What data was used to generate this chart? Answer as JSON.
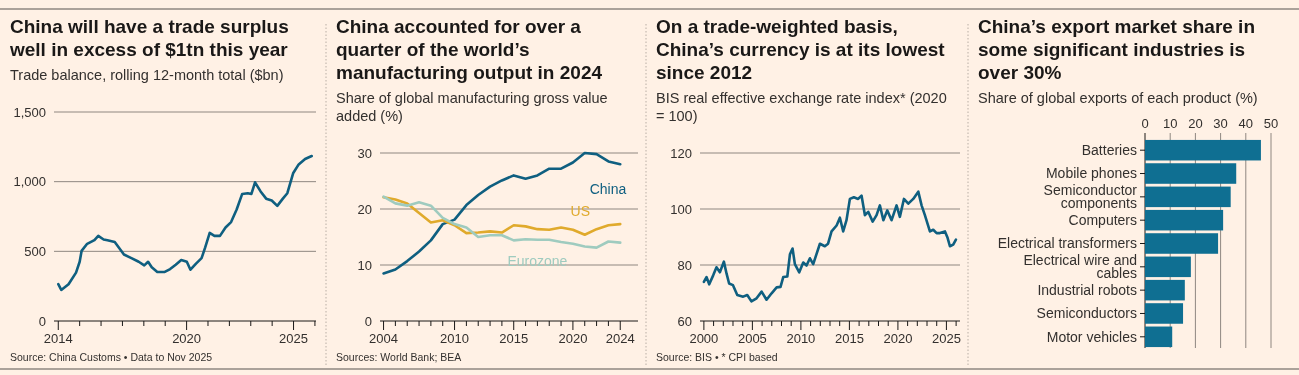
{
  "chart_data": [
    {
      "type": "line",
      "title": "China will have a trade surplus well in excess of $1tn this year",
      "subtitle": "Trade balance, rolling 12-month total ($bn)",
      "annotations": [
        "Source: China Customs • Data to Nov 2025"
      ],
      "grid": "y",
      "x": [
        2014.0,
        2014.14,
        2014.48,
        2014.83,
        2015.0,
        2015.09,
        2015.35,
        2015.69,
        2015.87,
        2016.12,
        2016.3,
        2016.64,
        2017.07,
        2017.42,
        2017.76,
        2018.02,
        2018.2,
        2018.37,
        2018.63,
        2018.98,
        2019.23,
        2019.49,
        2019.75,
        2020.01,
        2020.18,
        2020.44,
        2020.7,
        2020.87,
        2021.08,
        2021.3,
        2021.56,
        2021.82,
        2022.08,
        2022.34,
        2022.6,
        2022.86,
        2023.03,
        2023.2,
        2023.46,
        2023.72,
        2023.98,
        2024.24,
        2024.5,
        2024.71,
        2024.98,
        2025.24,
        2025.54,
        2025.85
      ],
      "series": [
        {
          "color": "#0f5f80",
          "values": [
            264,
            223,
            264,
            347,
            425,
            503,
            554,
            580,
            611,
            585,
            580,
            567,
            477,
            451,
            425,
            399,
            425,
            386,
            352,
            352,
            373,
            404,
            438,
            425,
            368,
            412,
            451,
            528,
            632,
            611,
            611,
            671,
            710,
            800,
            912,
            917,
            912,
            995,
            930,
            878,
            865,
            826,
            878,
            917,
            1060,
            1124,
            1163,
            1184
          ]
        }
      ],
      "xlim": [
        2013.8,
        2026.05
      ],
      "xticks": [
        2014,
        {
          "value": 2015,
          "label": null
        },
        {
          "value": 2016,
          "label": null
        },
        {
          "value": 2017,
          "label": null
        },
        {
          "value": 2018,
          "label": null
        },
        {
          "value": 2019,
          "label": null
        },
        2020,
        {
          "value": 2021,
          "label": null
        },
        {
          "value": 2022,
          "label": null
        },
        {
          "value": 2023,
          "label": null
        },
        {
          "value": 2024,
          "label": null
        },
        2025,
        {
          "value": 2026,
          "label": null
        }
      ],
      "ylim": [
        0,
        1500
      ],
      "yticks": [
        0,
        500,
        {
          "value": 1000,
          "label": "1,000"
        },
        {
          "value": 1500,
          "label": "1,500"
        }
      ]
    },
    {
      "type": "line",
      "title": "China accounted for over a quarter of the world’s manufacturing output in 2024",
      "subtitle": "Share of global manufacturing gross value added (%)",
      "annotations": [
        "Sources: World Bank; BEA"
      ],
      "grid": "y",
      "x": [
        2004,
        2005,
        2006,
        2007,
        2008,
        2009,
        2010,
        2011,
        2012,
        2013,
        2014,
        2015,
        2016,
        2017,
        2018,
        2019,
        2020,
        2021,
        2022,
        2023,
        2024
      ],
      "series": [
        {
          "name": "China",
          "color": "#0f5f80",
          "values": [
            8.5,
            9.2,
            10.7,
            12.4,
            14.4,
            17.3,
            18.1,
            20.7,
            22.5,
            24.0,
            25.1,
            26.0,
            25.4,
            26.0,
            27.2,
            27.2,
            28.3,
            30.0,
            29.8,
            28.5,
            28.0
          ]
        },
        {
          "name": "US",
          "color": "#e0aa2c",
          "values": [
            22.1,
            21.7,
            21.0,
            19.3,
            17.6,
            18.0,
            17.1,
            15.7,
            15.8,
            16.0,
            15.8,
            17.1,
            16.9,
            16.4,
            16.3,
            16.7,
            16.3,
            15.4,
            16.4,
            17.1,
            17.3
          ]
        },
        {
          "name": "Eurozone",
          "color": "#9fcbbf",
          "values": [
            22.2,
            21.0,
            20.6,
            21.2,
            20.6,
            18.4,
            17.3,
            16.7,
            15.0,
            15.3,
            15.3,
            14.4,
            14.6,
            14.5,
            14.5,
            14.1,
            13.8,
            13.3,
            13.1,
            14.2,
            14.0
          ]
        }
      ],
      "xlim": [
        2003.7,
        2025.5
      ],
      "xticks": [
        2004,
        {
          "value": 2005,
          "label": null
        },
        {
          "value": 2006,
          "label": null
        },
        {
          "value": 2007,
          "label": null
        },
        {
          "value": 2008,
          "label": null
        },
        {
          "value": 2009,
          "label": null
        },
        2010,
        {
          "value": 2011,
          "label": null
        },
        {
          "value": 2012,
          "label": null
        },
        {
          "value": 2013,
          "label": null
        },
        {
          "value": 2014,
          "label": null
        },
        2015,
        {
          "value": 2016,
          "label": null
        },
        {
          "value": 2017,
          "label": null
        },
        {
          "value": 2018,
          "label": null
        },
        {
          "value": 2019,
          "label": null
        },
        2020,
        {
          "value": 2021,
          "label": null
        },
        {
          "value": 2022,
          "label": null
        },
        {
          "value": 2023,
          "label": null
        },
        2024
      ],
      "ylim": [
        0,
        30
      ],
      "yticks": [
        0,
        10,
        20,
        30
      ]
    },
    {
      "type": "line",
      "title": "On a trade-weighted basis, China’s currency is at its lowest since 2012",
      "subtitle": "BIS real effective exchange rate index* (2020 = 100)",
      "annotations": [
        "Source: BIS • * CPI based"
      ],
      "grid": "y",
      "x": [
        2000.0,
        2000.27,
        2000.55,
        2000.96,
        2001.3,
        2001.65,
        2002.06,
        2002.34,
        2002.6,
        2003.0,
        2003.44,
        2004.05,
        2004.47,
        2004.9,
        2005.43,
        2005.95,
        2006.46,
        2006.98,
        2007.5,
        2007.9,
        2008.18,
        2008.6,
        2008.87,
        2009.14,
        2009.38,
        2009.83,
        2010.24,
        2010.58,
        2010.93,
        2011.27,
        2011.6,
        2011.96,
        2012.47,
        2012.8,
        2013.16,
        2013.68,
        2014.02,
        2014.36,
        2014.7,
        2015.05,
        2015.46,
        2015.9,
        2016.25,
        2016.6,
        2016.94,
        2017.4,
        2017.8,
        2018.14,
        2018.5,
        2018.9,
        2019.35,
        2019.86,
        2020.2,
        2020.62,
        2021.07,
        2021.58,
        2022.1,
        2022.44,
        2022.78,
        2023.3,
        2023.64,
        2023.99,
        2024.33,
        2024.85,
        2025.12,
        2025.36,
        2025.7,
        2025.98
      ],
      "series": [
        {
          "color": "#0f5f80",
          "values": [
            74.0,
            75.7,
            73.1,
            76.3,
            79.2,
            77.4,
            81.2,
            76.9,
            73.4,
            72.8,
            69.3,
            68.7,
            69.3,
            67.0,
            68.1,
            70.5,
            67.6,
            69.9,
            72.0,
            72.2,
            75.7,
            75.9,
            83.8,
            85.9,
            80.3,
            77.4,
            80.9,
            79.8,
            82.4,
            80.3,
            83.8,
            87.6,
            86.7,
            87.6,
            92.0,
            94.1,
            96.9,
            92.0,
            96.0,
            103.6,
            104.2,
            103.6,
            104.8,
            97.8,
            99.0,
            95.5,
            97.8,
            101.3,
            96.0,
            99.5,
            96.0,
            101.3,
            97.2,
            103.6,
            101.9,
            103.6,
            106.2,
            101.3,
            97.8,
            92.0,
            92.6,
            91.4,
            91.4,
            92.0,
            89.7,
            86.7,
            87.3,
            89.1
          ]
        }
      ],
      "xlim": [
        1999.6,
        2026.4
      ],
      "xticks": [
        2000,
        {
          "value": 2001,
          "label": null
        },
        {
          "value": 2002,
          "label": null
        },
        {
          "value": 2003,
          "label": null
        },
        {
          "value": 2004,
          "label": null
        },
        2005,
        {
          "value": 2006,
          "label": null
        },
        {
          "value": 2007,
          "label": null
        },
        {
          "value": 2008,
          "label": null
        },
        {
          "value": 2009,
          "label": null
        },
        2010,
        {
          "value": 2011,
          "label": null
        },
        {
          "value": 2012,
          "label": null
        },
        {
          "value": 2013,
          "label": null
        },
        {
          "value": 2014,
          "label": null
        },
        2015,
        {
          "value": 2016,
          "label": null
        },
        {
          "value": 2017,
          "label": null
        },
        {
          "value": 2018,
          "label": null
        },
        {
          "value": 2019,
          "label": null
        },
        2020,
        {
          "value": 2021,
          "label": null
        },
        {
          "value": 2022,
          "label": null
        },
        {
          "value": 2023,
          "label": null
        },
        {
          "value": 2024,
          "label": null
        },
        2025,
        {
          "value": 2026,
          "label": null
        }
      ],
      "ylim": [
        60,
        120
      ],
      "yticks": [
        60,
        80,
        100,
        120
      ]
    },
    {
      "type": "bar",
      "orientation": "horizontal",
      "title": "China’s export market share in some significant industries is over 30%",
      "subtitle": "Share of global exports of each product (%)",
      "grid": "x",
      "categories": [
        "Batteries",
        "Mobile phones",
        "Semiconductor components",
        "Computers",
        "Electrical transformers",
        "Electrical wire and cables",
        "Industrial robots",
        "Semiconductors",
        "Motor vehicles"
      ],
      "values": [
        46,
        36.2,
        34,
        31,
        29,
        18.2,
        15.8,
        15.1,
        10.8
      ],
      "color": "#0f6f92",
      "xlim": [
        0,
        50
      ],
      "xticks": [
        0,
        10,
        20,
        30,
        40,
        50
      ]
    }
  ]
}
